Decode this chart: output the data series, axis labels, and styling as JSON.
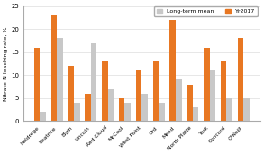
{
  "categories": [
    "Holdrege",
    "Beatrice",
    "Elgin",
    "Lincoln",
    "Red Cloud",
    "McCool",
    "West Point",
    "Ord",
    "Mead",
    "North Platte",
    "York",
    "Concord",
    "O'Neill"
  ],
  "long_term_mean": [
    2,
    18,
    4,
    17,
    7,
    4,
    6,
    4,
    9,
    3,
    11,
    5,
    5
  ],
  "yr2017": [
    16,
    23,
    12,
    6,
    13,
    5,
    11,
    13,
    22,
    8,
    16,
    13,
    18
  ],
  "color_ltm": "#c8c8c8",
  "color_2017": "#e87722",
  "ylabel": "Nitrate-N leaching rate, %",
  "ylim": [
    0,
    25
  ],
  "yticks": [
    0,
    5,
    10,
    15,
    20,
    25
  ],
  "legend_ltm": "Long-term mean",
  "legend_2017": "Yr2017",
  "background_color": "#ffffff",
  "bar_width": 0.35
}
